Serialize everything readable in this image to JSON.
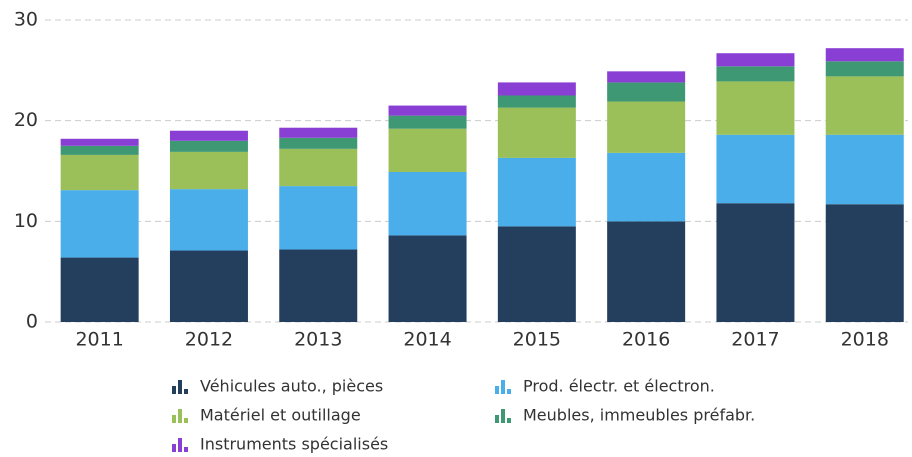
{
  "chart_data": {
    "type": "stacked_bar",
    "categories": [
      "2011",
      "2012",
      "2013",
      "2014",
      "2015",
      "2016",
      "2017",
      "2018"
    ],
    "series": [
      {
        "name": "Véhicules auto., pièces",
        "color": "#243f5e",
        "values": [
          6.4,
          7.1,
          7.2,
          8.6,
          9.5,
          10.0,
          11.8,
          11.7
        ]
      },
      {
        "name": "Prod. électr. et électron.",
        "color": "#4aaeea",
        "values": [
          6.7,
          6.1,
          6.3,
          6.3,
          6.8,
          6.8,
          6.8,
          6.9
        ]
      },
      {
        "name": "Matériel et outillage",
        "color": "#9bbf59",
        "values": [
          3.5,
          3.7,
          3.7,
          4.3,
          5.0,
          5.1,
          5.3,
          5.8
        ]
      },
      {
        "name": "Meubles, immeubles préfabr.",
        "color": "#3f9874",
        "values": [
          0.9,
          1.1,
          1.1,
          1.3,
          1.2,
          1.9,
          1.5,
          1.5
        ]
      },
      {
        "name": "Instruments spécialisés",
        "color": "#8a3fd4",
        "values": [
          0.7,
          1.0,
          1.0,
          1.0,
          1.3,
          1.1,
          1.3,
          1.3
        ]
      }
    ],
    "ylim": [
      0,
      30
    ],
    "yticks": [
      0,
      10,
      20,
      30
    ],
    "grid": true,
    "legend": "bottom"
  }
}
